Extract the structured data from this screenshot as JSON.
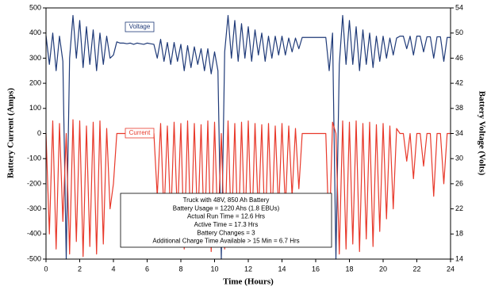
{
  "chart_data": {
    "type": "line",
    "x_label": "Time (Hours)",
    "y_label": "Battery Current (Amps)",
    "y2_label": "Battery Voltage (Volts)",
    "x": [
      0,
      0.2,
      0.4,
      0.6,
      0.8,
      1,
      1.2,
      1.4,
      1.6,
      1.8,
      2,
      2.2,
      2.4,
      2.6,
      2.8,
      3,
      3.2,
      3.4,
      3.6,
      3.8,
      4,
      4.2,
      4.4,
      4.6,
      4.8,
      5,
      5.2,
      5.4,
      5.6,
      5.8,
      6,
      6.2,
      6.4,
      6.6,
      6.8,
      7,
      7.2,
      7.4,
      7.6,
      7.8,
      8,
      8.2,
      8.4,
      8.6,
      8.8,
      9,
      9.2,
      9.4,
      9.6,
      9.8,
      10,
      10.2,
      10.4,
      10.6,
      10.8,
      11,
      11.2,
      11.4,
      11.6,
      11.8,
      12,
      12.2,
      12.4,
      12.6,
      12.8,
      13,
      13.2,
      13.4,
      13.6,
      13.8,
      14,
      14.2,
      14.4,
      14.6,
      14.8,
      15,
      15.2,
      15.4,
      15.6,
      15.8,
      16,
      16.2,
      16.4,
      16.6,
      16.8,
      17,
      17.2,
      17.4,
      17.6,
      17.8,
      18,
      18.2,
      18.4,
      18.6,
      18.8,
      19,
      19.2,
      19.4,
      19.6,
      19.8,
      20,
      20.2,
      20.4,
      20.6,
      20.8,
      21,
      21.2,
      21.4,
      21.6,
      21.8,
      22,
      22.2,
      22.4,
      22.6,
      22.8,
      23,
      23.2,
      23.4,
      23.6,
      23.8,
      24
    ],
    "series": [
      {
        "name": "Voltage",
        "color": "#1f3a78",
        "axis": "y2",
        "values": [
          49.6,
          45,
          50,
          44,
          49.5,
          45.5,
          14,
          46,
          52.8,
          46,
          52,
          44.5,
          51,
          45,
          50.5,
          44,
          50,
          45,
          49.5,
          46,
          46.5,
          48.6,
          48.4,
          48.4,
          48.3,
          48.4,
          48.2,
          48.4,
          48.3,
          48.2,
          48.4,
          48.3,
          48.2,
          46,
          49,
          45.5,
          48.5,
          45,
          48.5,
          45.5,
          48.2,
          44,
          48,
          44.5,
          47.8,
          45,
          47.5,
          44,
          47.5,
          43.5,
          47,
          44,
          14,
          47,
          52.8,
          46,
          52,
          45.5,
          51.5,
          46,
          51,
          45.5,
          50.5,
          46.5,
          50,
          45.5,
          49.5,
          46,
          49.5,
          46.5,
          49.5,
          46.5,
          49.2,
          47,
          49.2,
          47.5,
          49.3,
          49.3,
          49.3,
          49.3,
          49.3,
          49.3,
          49.3,
          49.3,
          44,
          50,
          14,
          45,
          52.8,
          45,
          52,
          45,
          51,
          44,
          50.5,
          45,
          50,
          44.5,
          49.5,
          45.5,
          49.5,
          46,
          49.2,
          46.5,
          49.2,
          49.5,
          49.5,
          47.5,
          49.5,
          46.5,
          49.5,
          49.5,
          47,
          49.4,
          49.4,
          46,
          49.4,
          49.4,
          45.5,
          49.3,
          49.3
        ]
      },
      {
        "name": "Current",
        "color": "#e8392b",
        "axis": "y",
        "values": [
          0,
          -400,
          50,
          -460,
          40,
          -350,
          0,
          -480,
          55,
          -430,
          50,
          -490,
          30,
          -450,
          45,
          -480,
          50,
          -440,
          20,
          -300,
          -200,
          0,
          0,
          0,
          0,
          0,
          0,
          0,
          0,
          0,
          0,
          0,
          0,
          -250,
          40,
          -330,
          30,
          -350,
          45,
          -340,
          40,
          -460,
          50,
          -420,
          40,
          -380,
          35,
          -440,
          50,
          -470,
          45,
          -400,
          0,
          -460,
          50,
          -410,
          40,
          -450,
          45,
          -380,
          50,
          -420,
          40,
          -330,
          35,
          -410,
          40,
          -360,
          30,
          -310,
          40,
          -300,
          30,
          -250,
          20,
          -220,
          0,
          0,
          0,
          0,
          0,
          0,
          0,
          0,
          -430,
          45,
          0,
          -480,
          50,
          -460,
          45,
          -440,
          50,
          -470,
          40,
          -420,
          45,
          -450,
          35,
          -390,
          40,
          -340,
          30,
          -300,
          20,
          0,
          0,
          -110,
          0,
          -180,
          0,
          0,
          -130,
          0,
          0,
          -250,
          0,
          0,
          -200,
          0,
          0
        ]
      }
    ],
    "xlim": [
      0,
      24
    ],
    "xticks": [
      0,
      2,
      4,
      6,
      8,
      10,
      12,
      14,
      16,
      18,
      20,
      22,
      24
    ],
    "ylim": [
      -500,
      500
    ],
    "yticks": [
      -500,
      -400,
      -300,
      -200,
      -100,
      0,
      100,
      200,
      300,
      400,
      500
    ],
    "y2lim": [
      14,
      54
    ],
    "y2ticks": [
      14,
      18,
      22,
      26,
      30,
      34,
      38,
      42,
      46,
      50,
      54
    ],
    "annotation": [
      "Truck with 48V, 850 Ah Battery",
      "Battery Usage = 1220 Ahs (1.8 EBUs)",
      "Actual Run Time = 12.6 Hrs",
      "Active Time = 17.3 Hrs",
      "Battery Changes = 3",
      "Additional Charge Time Available > 15 Min = 6.7 Hrs"
    ]
  }
}
